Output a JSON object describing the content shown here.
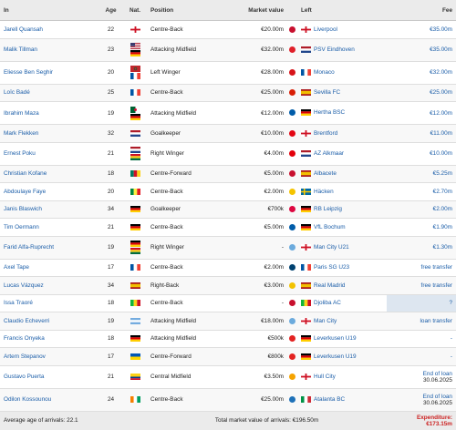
{
  "headers": {
    "in": "In",
    "age": "Age",
    "nat": "Nat.",
    "position": "Position",
    "market_value": "Market value",
    "left": "Left",
    "fee": "Fee"
  },
  "rows": [
    {
      "player": "Jarell Quansah",
      "age": "22",
      "nat": [
        "gb-eng"
      ],
      "position": "Centre-Back",
      "market_value": "€20.00m",
      "left": "Liverpool",
      "left_nat": "gb-eng",
      "fee": "€35.00m"
    },
    {
      "player": "Malik Tillman",
      "age": "23",
      "nat": [
        "us",
        "de"
      ],
      "position": "Attacking Midfield",
      "market_value": "€32.00m",
      "left": "PSV Eindhoven",
      "left_nat": "nl",
      "fee": "€35.00m"
    },
    {
      "player": "Eliesse Ben Seghir",
      "age": "20",
      "nat": [
        "ma",
        "fr"
      ],
      "position": "Left Winger",
      "market_value": "€28.00m",
      "left": "Monaco",
      "left_nat": "fr",
      "fee": "€32.00m"
    },
    {
      "player": "Loïc Badé",
      "age": "25",
      "nat": [
        "fr"
      ],
      "position": "Centre-Back",
      "market_value": "€25.00m",
      "left": "Sevilla FC",
      "left_nat": "es",
      "fee": "€25.00m"
    },
    {
      "player": "Ibrahim Maza",
      "age": "19",
      "nat": [
        "dz",
        "de"
      ],
      "position": "Attacking Midfield",
      "market_value": "€12.00m",
      "left": "Hertha BSC",
      "left_nat": "de",
      "fee": "€12.00m"
    },
    {
      "player": "Mark Flekken",
      "age": "32",
      "nat": [
        "nl"
      ],
      "position": "Goalkeeper",
      "market_value": "€10.00m",
      "left": "Brentford",
      "left_nat": "gb-eng",
      "fee": "€11.00m"
    },
    {
      "player": "Ernest Poku",
      "age": "21",
      "nat": [
        "nl",
        "gh"
      ],
      "position": "Right Winger",
      "market_value": "€4.00m",
      "left": "AZ Alkmaar",
      "left_nat": "nl",
      "fee": "€10.00m"
    },
    {
      "player": "Christian Kofane",
      "age": "18",
      "nat": [
        "cm"
      ],
      "position": "Centre-Forward",
      "market_value": "€5.00m",
      "left": "Albacete",
      "left_nat": "es",
      "fee": "€5.25m"
    },
    {
      "player": "Abdoulaye Faye",
      "age": "20",
      "nat": [
        "sn"
      ],
      "position": "Centre-Back",
      "market_value": "€2.00m",
      "left": "Häcken",
      "left_nat": "se",
      "fee": "€2.70m"
    },
    {
      "player": "Janis Blaswich",
      "age": "34",
      "nat": [
        "de"
      ],
      "position": "Goalkeeper",
      "market_value": "€700k",
      "left": "RB Leipzig",
      "left_nat": "de",
      "fee": "€2.00m"
    },
    {
      "player": "Tim Oermann",
      "age": "21",
      "nat": [
        "de"
      ],
      "position": "Centre-Back",
      "market_value": "€5.00m",
      "left": "VfL Bochum",
      "left_nat": "de",
      "fee": "€1.90m"
    },
    {
      "player": "Farid Alfa-Ruprecht",
      "age": "19",
      "nat": [
        "de",
        "gh"
      ],
      "position": "Right Winger",
      "market_value": "-",
      "left": "Man City U21",
      "left_nat": "gb-eng",
      "fee": "€1.30m"
    },
    {
      "player": "Axel Tape",
      "age": "17",
      "nat": [
        "fr"
      ],
      "position": "Centre-Back",
      "market_value": "€2.00m",
      "left": "Paris SG U23",
      "left_nat": "fr",
      "fee": "free transfer"
    },
    {
      "player": "Lucas Vázquez",
      "age": "34",
      "nat": [
        "es"
      ],
      "position": "Right-Back",
      "market_value": "€3.00m",
      "left": "Real Madrid",
      "left_nat": "es",
      "fee": "free transfer"
    },
    {
      "player": "Issa Traoré",
      "age": "18",
      "nat": [
        "ml"
      ],
      "position": "Centre-Back",
      "market_value": "-",
      "left": "Djoliba AC",
      "left_nat": "ml",
      "fee": "?"
    },
    {
      "player": "Claudio Echeverri",
      "age": "19",
      "nat": [
        "ar"
      ],
      "position": "Attacking Midfield",
      "market_value": "€18.00m",
      "left": "Man City",
      "left_nat": "gb-eng",
      "fee": "loan transfer"
    },
    {
      "player": "Francis Onyeka",
      "age": "18",
      "nat": [
        "de"
      ],
      "position": "Attacking Midfield",
      "market_value": "€500k",
      "left": "Leverkusen U19",
      "left_nat": "de",
      "fee": "-"
    },
    {
      "player": "Artem Stepanov",
      "age": "17",
      "nat": [
        "ua"
      ],
      "position": "Centre-Forward",
      "market_value": "€800k",
      "left": "Leverkusen U19",
      "left_nat": "de",
      "fee": "-"
    },
    {
      "player": "Gustavo Puerta",
      "age": "21",
      "nat": [
        "co"
      ],
      "position": "Central Midfield",
      "market_value": "€3.50m",
      "left": "Hull City",
      "left_nat": "gb-eng",
      "fee_line1": "End of loan",
      "fee_line2": "30.06.2025"
    },
    {
      "player": "Odilon Kossounou",
      "age": "24",
      "nat": [
        "ci"
      ],
      "position": "Centre-Back",
      "market_value": "€25.00m",
      "left": "Atalanta BC",
      "left_nat": "it",
      "fee_line1": "End of loan",
      "fee_line2": "30.06.2025"
    }
  ],
  "footer": {
    "avg_age": "Average age of arrivals: 22.1",
    "total_mv": "Total market value of arrivals: €196.50m",
    "expenditure": "Expenditure: €173.15m"
  },
  "colors": {
    "link": "#1a5da8",
    "expenditure": "#cc2222",
    "header_bg": "#ebebeb"
  },
  "club_colors": {
    "Liverpool": "#c8102e",
    "PSV Eindhoven": "#e0202a",
    "Monaco": "#d7141a",
    "Sevilla FC": "#d81e05",
    "Hertha BSC": "#005ca9",
    "Brentford": "#e30613",
    "AZ Alkmaar": "#e3000b",
    "Albacete": "#c8102e",
    "Häcken": "#f5c400",
    "RB Leipzig": "#dd0741",
    "VfL Bochum": "#005ca9",
    "Man City U21": "#6cabdd",
    "Paris SG U23": "#004170",
    "Real Madrid": "#f2c200",
    "Djoliba AC": "#c8102e",
    "Man City": "#6cabdd",
    "Leverkusen U19": "#e32221",
    "Hull City": "#f5a300",
    "Atalanta BC": "#1e71b8"
  }
}
